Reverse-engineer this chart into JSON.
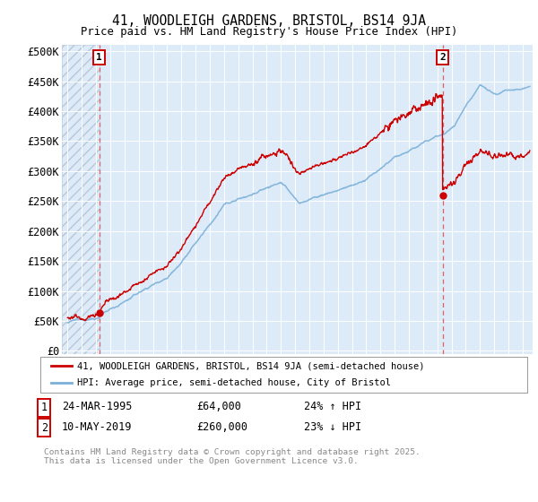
{
  "title_line1": "41, WOODLEIGH GARDENS, BRISTOL, BS14 9JA",
  "title_line2": "Price paid vs. HM Land Registry's House Price Index (HPI)",
  "ylabel_ticks": [
    "£0",
    "£50K",
    "£100K",
    "£150K",
    "£200K",
    "£250K",
    "£300K",
    "£350K",
    "£400K",
    "£450K",
    "£500K"
  ],
  "ytick_values": [
    0,
    50000,
    100000,
    150000,
    200000,
    250000,
    300000,
    350000,
    400000,
    450000,
    500000
  ],
  "xlim_start": 1992.6,
  "xlim_end": 2025.7,
  "ylim_min": -5000,
  "ylim_max": 510000,
  "sale1_year": 1995.22,
  "sale1_price": 64000,
  "sale2_year": 2019.37,
  "sale2_price": 260000,
  "background_color": "#ddeaf8",
  "hatch_color": "#b8c8d8",
  "grid_color": "#ffffff",
  "red_line_color": "#cc0000",
  "blue_line_color": "#7ab0d8",
  "dashed_line_color": "#e06060",
  "legend_label1": "41, WOODLEIGH GARDENS, BRISTOL, BS14 9JA (semi-detached house)",
  "legend_label2": "HPI: Average price, semi-detached house, City of Bristol",
  "note1_date": "24-MAR-1995",
  "note1_price": "£64,000",
  "note1_hpi": "24% ↑ HPI",
  "note2_date": "10-MAY-2019",
  "note2_price": "£260,000",
  "note2_hpi": "23% ↓ HPI",
  "footer": "Contains HM Land Registry data © Crown copyright and database right 2025.\nThis data is licensed under the Open Government Licence v3.0."
}
